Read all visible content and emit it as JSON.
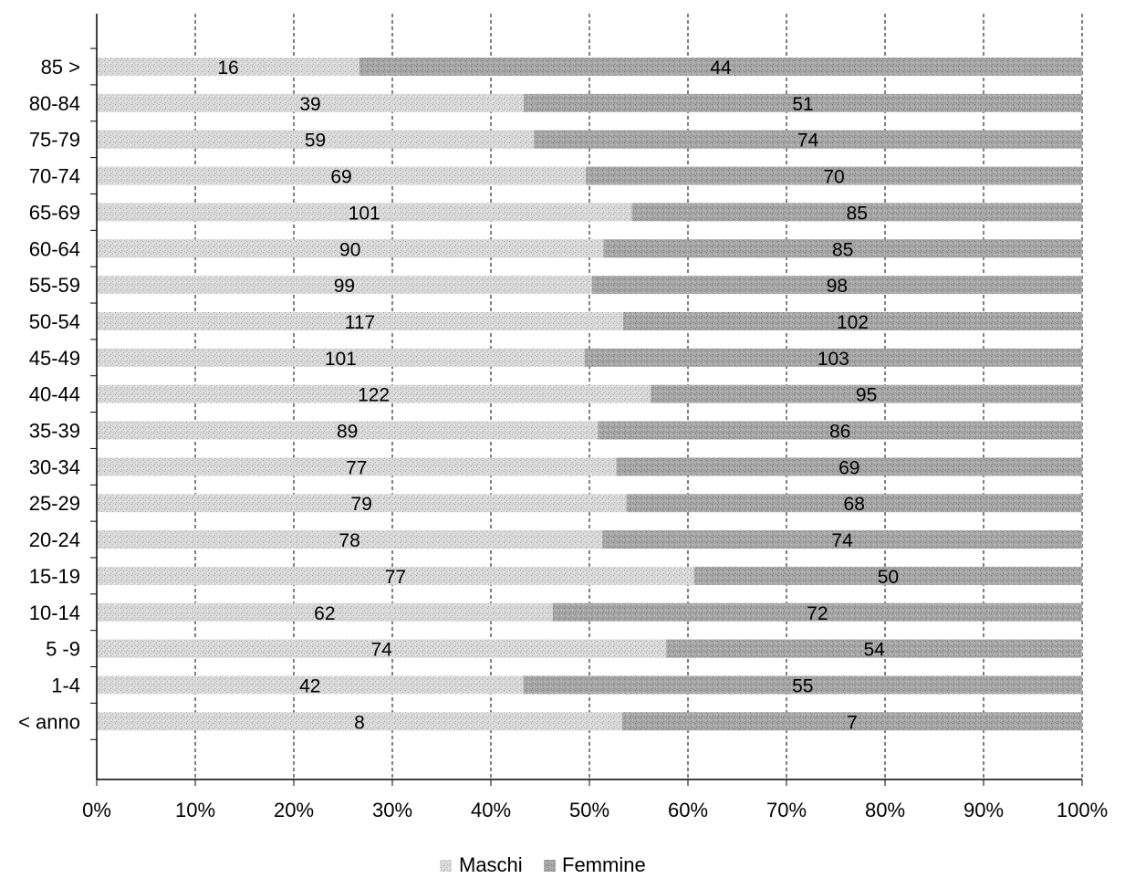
{
  "chart_data": {
    "type": "bar",
    "orientation": "horizontal",
    "stacking": "percent",
    "categories": [
      "85 >",
      "80-84",
      "75-79",
      "70-74",
      "65-69",
      "60-64",
      "55-59",
      "50-54",
      "45-49",
      "40-44",
      "35-39",
      "30-34",
      "25-29",
      "20-24",
      "15-19",
      "10-14",
      "5 -9",
      "1-4",
      "< anno"
    ],
    "series": [
      {
        "name": "Maschi",
        "values": [
          16,
          39,
          59,
          69,
          101,
          90,
          99,
          117,
          101,
          122,
          89,
          77,
          79,
          78,
          77,
          62,
          74,
          42,
          8
        ]
      },
      {
        "name": "Femmine",
        "values": [
          44,
          51,
          74,
          70,
          85,
          85,
          98,
          102,
          103,
          95,
          86,
          69,
          68,
          74,
          50,
          72,
          54,
          55,
          7
        ]
      }
    ],
    "x_ticks": [
      "0%",
      "10%",
      "20%",
      "30%",
      "40%",
      "50%",
      "60%",
      "70%",
      "80%",
      "90%",
      "100%"
    ],
    "xlim": [
      0,
      100
    ],
    "grid": "vertical dashed",
    "legend_position": "bottom",
    "colors": {
      "Maschi": "#d6d6d6",
      "Femmine": "#a4a4a4"
    }
  }
}
